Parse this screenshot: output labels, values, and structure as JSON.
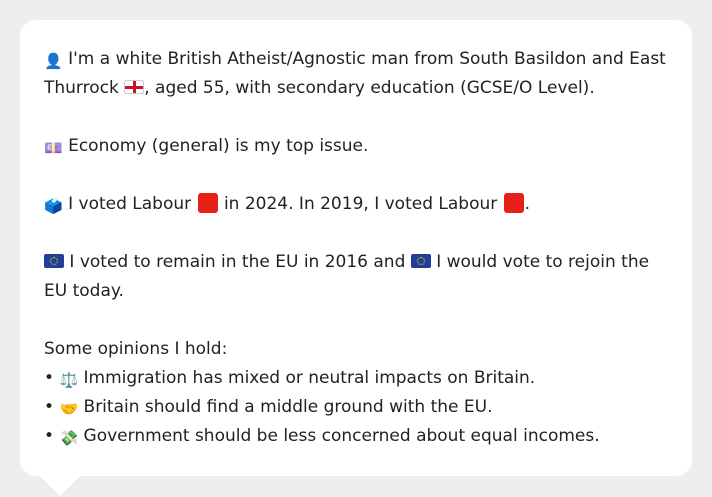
{
  "profile": {
    "identity": {
      "icon": "person-silhouette-icon",
      "line": "I'm a white British Atheist/Agnostic man from South Basildon and East Thurrock",
      "flag_icon": "england-flag-icon",
      "line_end": ", aged 55, with secondary education (GCSE/O Level)."
    },
    "issue": {
      "icon": "banknote-icon",
      "text": "Economy (general) is my top issue."
    },
    "vote": {
      "icon": "ballot-box-icon",
      "part1": "I voted Labour",
      "part2": "in 2024. In 2019, I voted Labour",
      "part3": ".",
      "party_color": "#e8201a"
    },
    "eu": {
      "flag_icon": "eu-flag-icon",
      "part1": "I voted to remain in the EU in 2016 and",
      "part2": "I would vote to rejoin the EU today.",
      "flag_color": "#1f3f9a"
    },
    "opinions": {
      "heading": "Some opinions I hold:",
      "bullet": "•",
      "items": [
        {
          "icon": "balance-scale-icon",
          "glyph": "⚖️",
          "text": "Immigration has mixed or neutral impacts on Britain."
        },
        {
          "icon": "handshake-icon",
          "glyph": "🤝",
          "text": "Britain should find a middle ground with the EU."
        },
        {
          "icon": "money-bag-icon",
          "glyph": "💸",
          "text": "Government should be less concerned about equal incomes."
        }
      ]
    }
  }
}
